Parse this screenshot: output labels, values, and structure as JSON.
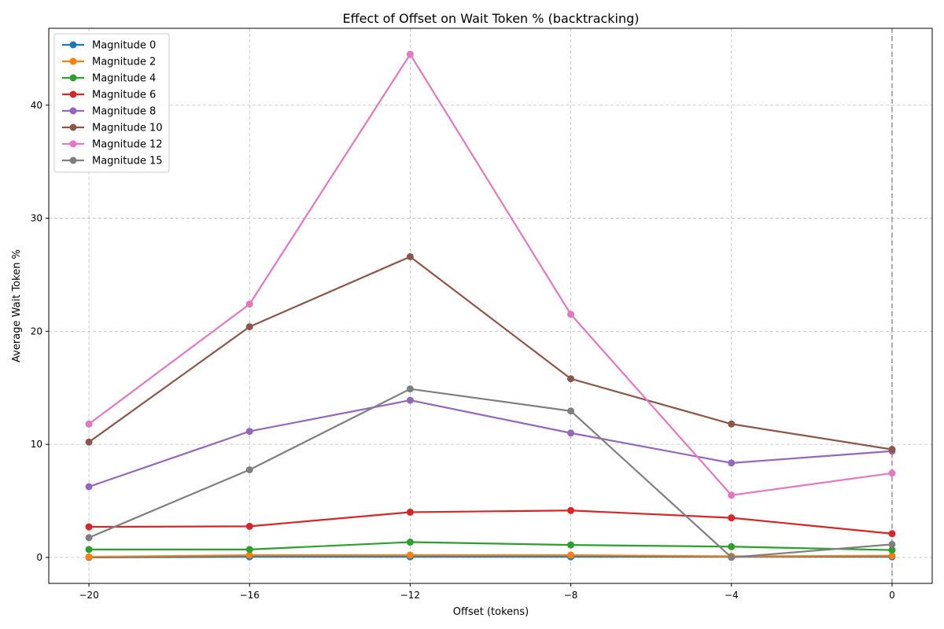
{
  "chart_data": {
    "type": "line",
    "title": "Effect of Offset on Wait Token % (backtracking)",
    "xlabel": "Offset (tokens)",
    "ylabel": "Average Wait Token %",
    "x": [
      -20,
      -16,
      -12,
      -8,
      -4,
      0
    ],
    "xticks": [
      -20,
      -16,
      -12,
      -8,
      -4,
      0
    ],
    "xtick_labels": [
      "−20",
      "−16",
      "−12",
      "−8",
      "−4",
      "0"
    ],
    "yticks": [
      0,
      10,
      20,
      30,
      40
    ],
    "ytick_labels": [
      "0",
      "10",
      "20",
      "30",
      "40"
    ],
    "xlim": [
      -21,
      1
    ],
    "ylim": [
      -2.3,
      46.8
    ],
    "grid": true,
    "legend_position": "top-left",
    "reference_line_x": 0,
    "series": [
      {
        "name": "Magnitude 0",
        "color": "#1f77b4",
        "values": [
          0.0,
          0.05,
          0.05,
          0.05,
          0.05,
          0.05
        ]
      },
      {
        "name": "Magnitude 2",
        "color": "#ff7f0e",
        "values": [
          0.05,
          0.2,
          0.2,
          0.2,
          0.1,
          0.15
        ]
      },
      {
        "name": "Magnitude 4",
        "color": "#2ca02c",
        "values": [
          0.7,
          0.7,
          1.35,
          1.1,
          0.95,
          0.65
        ]
      },
      {
        "name": "Magnitude 6",
        "color": "#d62728",
        "values": [
          2.7,
          2.75,
          4.0,
          4.15,
          3.5,
          2.1
        ]
      },
      {
        "name": "Magnitude 8",
        "color": "#9467bd",
        "values": [
          6.25,
          11.15,
          13.9,
          11.0,
          8.35,
          9.4
        ]
      },
      {
        "name": "Magnitude 10",
        "color": "#8c564b",
        "values": [
          10.2,
          20.4,
          26.6,
          15.8,
          11.8,
          9.55
        ]
      },
      {
        "name": "Magnitude 12",
        "color": "#e377c2",
        "values": [
          11.8,
          22.4,
          44.5,
          21.5,
          5.5,
          7.45
        ]
      },
      {
        "name": "Magnitude 15",
        "color": "#7f7f7f",
        "values": [
          1.75,
          7.75,
          14.9,
          12.95,
          0.0,
          1.15
        ]
      }
    ]
  }
}
